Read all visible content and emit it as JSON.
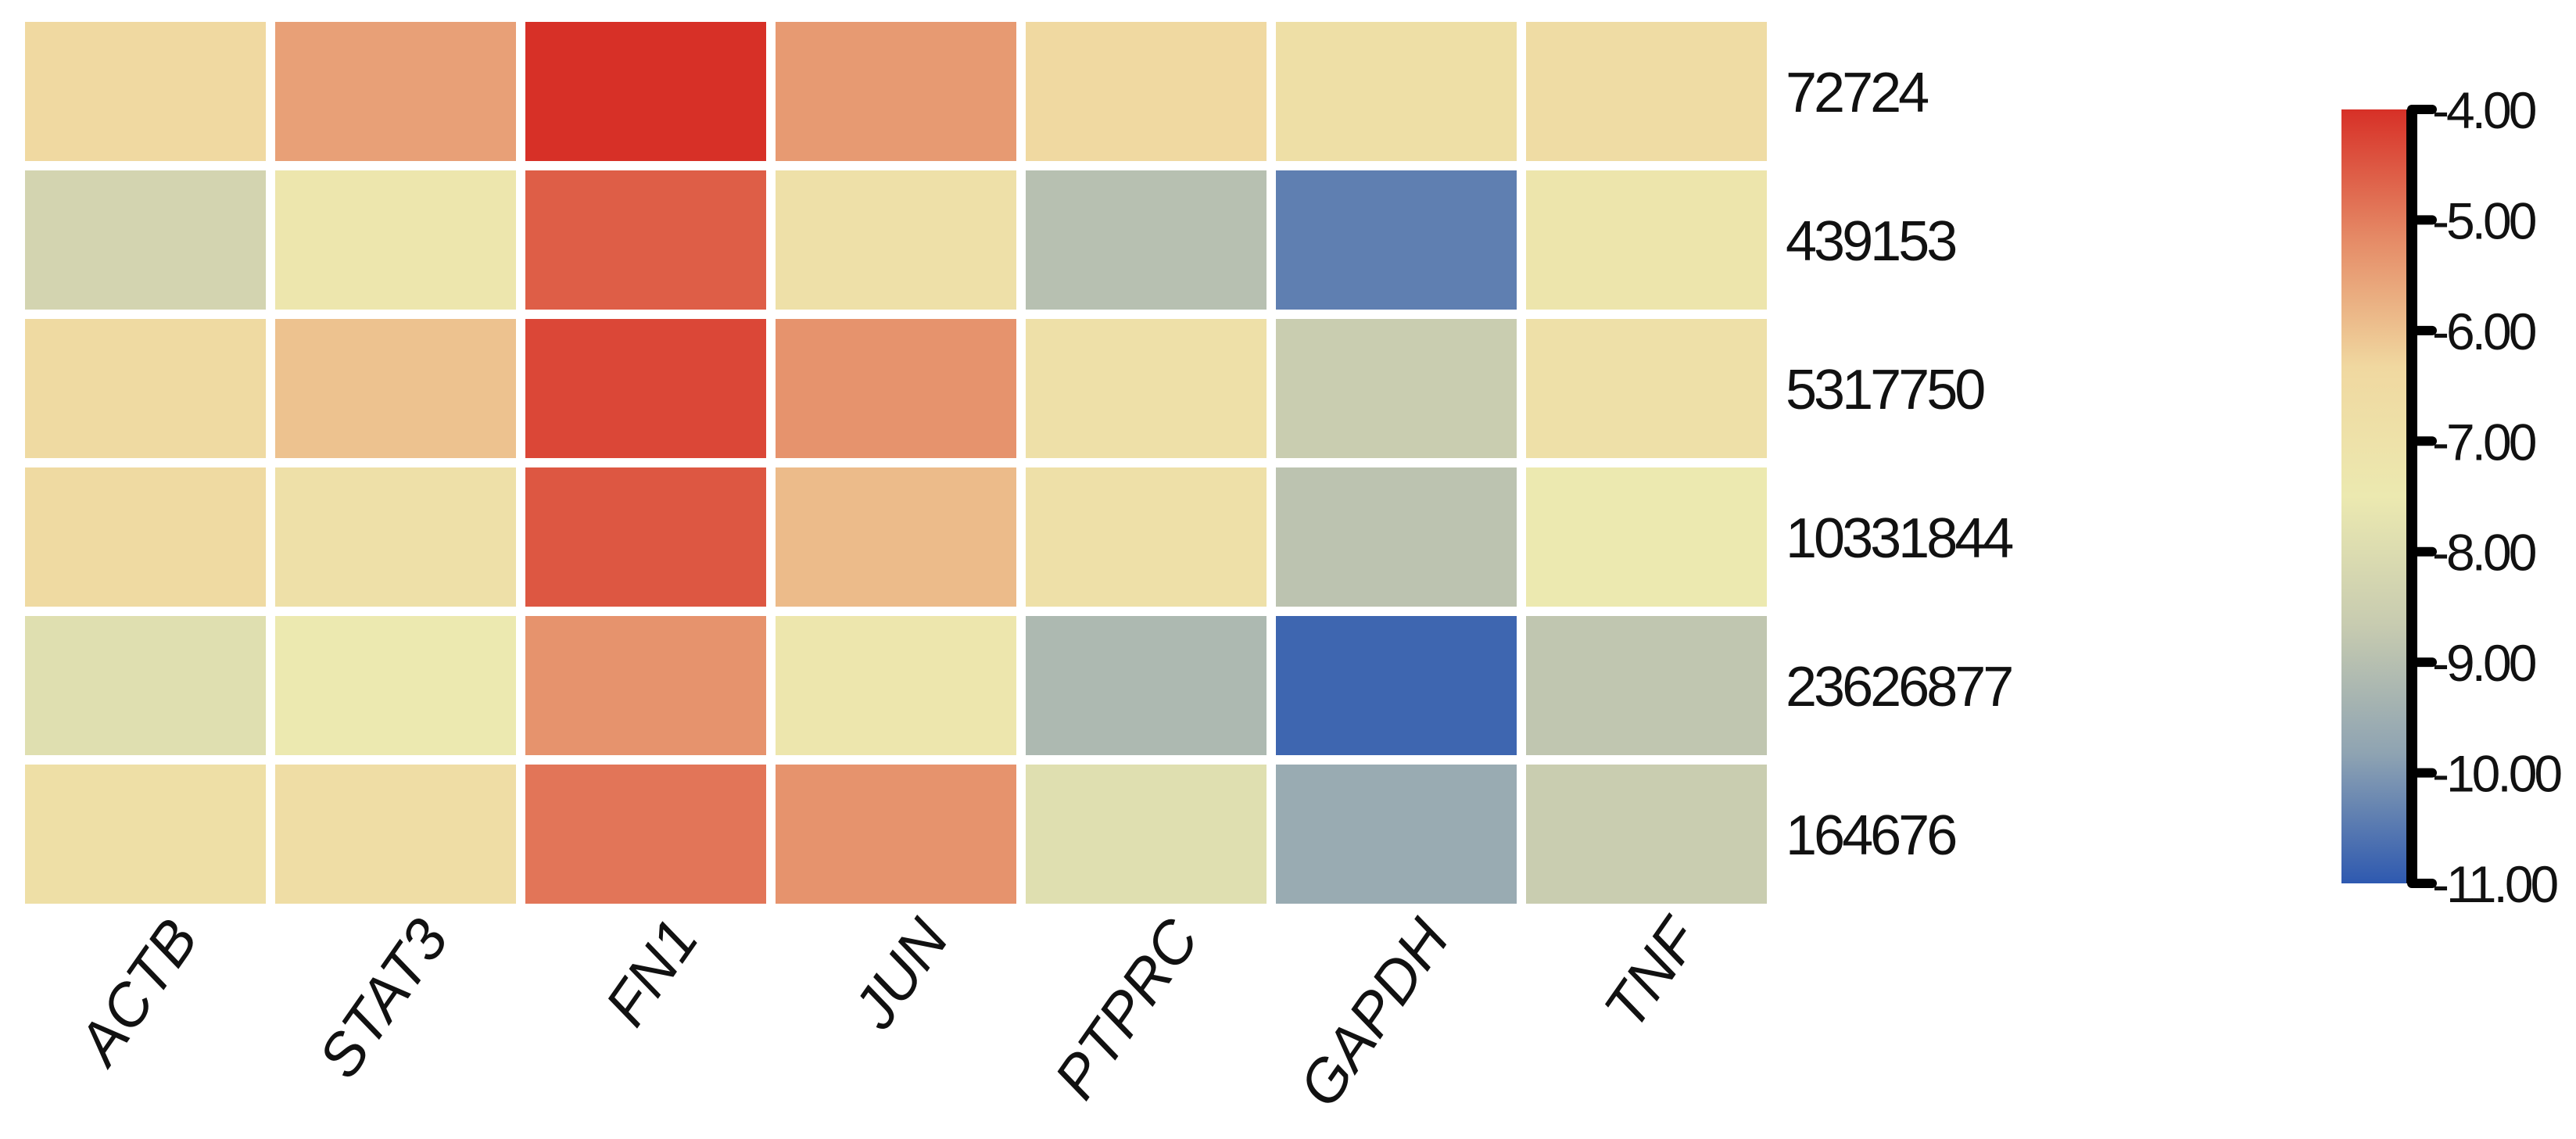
{
  "chart_data": {
    "type": "heatmap",
    "title": "",
    "xlabel": "",
    "ylabel": "",
    "columns": [
      "ACTB",
      "STAT3",
      "FN1",
      "JUN",
      "PTPRC",
      "GAPDH",
      "TNF"
    ],
    "rows": [
      "72724",
      "439153",
      "5317750",
      "10331844",
      "23626877",
      "164676"
    ],
    "values": [
      [
        -6.4,
        -5.5,
        -4.0,
        -5.4,
        -6.4,
        -6.8,
        -6.6
      ],
      [
        -8.3,
        -7.3,
        -4.6,
        -6.9,
        -9.0,
        -10.4,
        -7.2
      ],
      [
        -6.5,
        -6.0,
        -4.3,
        -5.3,
        -6.9,
        -8.6,
        -6.9
      ],
      [
        -6.5,
        -6.9,
        -4.5,
        -5.9,
        -6.9,
        -8.9,
        -7.5
      ],
      [
        -7.9,
        -7.5,
        -5.3,
        -7.3,
        -9.2,
        -10.8,
        -8.8
      ],
      [
        -6.8,
        -6.7,
        -4.9,
        -5.3,
        -7.9,
        -9.6,
        -8.6
      ]
    ],
    "colorbar": {
      "min": -11.0,
      "max": -4.0,
      "ticks": [
        "-4.00",
        "-5.00",
        "-6.00",
        "-7.00",
        "-8.00",
        "-9.00",
        "-10.00",
        "-11.00"
      ],
      "colormap": [
        "#d73027",
        "#e58a66",
        "#f0d8a0",
        "#ece9b0",
        "#c7cbb0",
        "#8ea3b2",
        "#2e59b0"
      ]
    }
  }
}
